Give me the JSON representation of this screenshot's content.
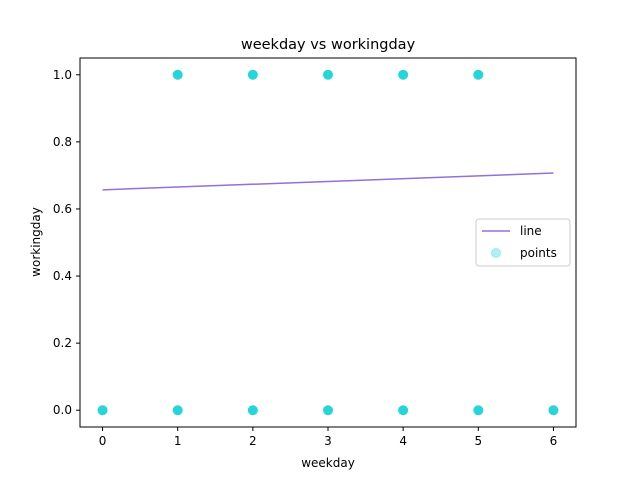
{
  "chart_data": {
    "type": "scatter",
    "title": "weekday vs workingday",
    "xlabel": "weekday",
    "ylabel": "workingday",
    "xlim": [
      -0.3,
      6.3
    ],
    "ylim": [
      -0.05,
      1.05
    ],
    "x_ticks": [
      0,
      1,
      2,
      3,
      4,
      5,
      6
    ],
    "x_tick_labels": [
      "0",
      "1",
      "2",
      "3",
      "4",
      "5",
      "6"
    ],
    "y_ticks": [
      0.0,
      0.2,
      0.4,
      0.6,
      0.8,
      1.0
    ],
    "y_tick_labels": [
      "0.0",
      "0.2",
      "0.4",
      "0.6",
      "0.8",
      "1.0"
    ],
    "grid": false,
    "legend_position": "center-right",
    "series": [
      {
        "name": "line",
        "kind": "line",
        "color": "#9370db",
        "x": [
          0,
          6
        ],
        "y": [
          0.657,
          0.707
        ]
      },
      {
        "name": "points",
        "kind": "scatter",
        "color": "#00ced1",
        "x": [
          0,
          1,
          1,
          2,
          2,
          3,
          3,
          4,
          4,
          5,
          5,
          6
        ],
        "y": [
          0,
          0,
          1,
          0,
          1,
          0,
          1,
          0,
          1,
          0,
          1,
          0
        ]
      }
    ]
  }
}
